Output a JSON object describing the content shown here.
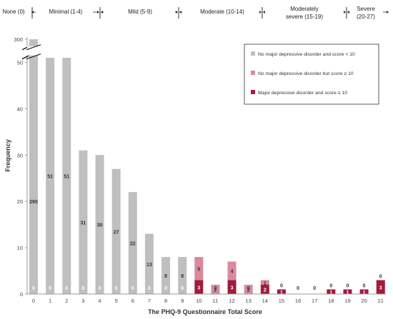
{
  "chart_data": {
    "type": "bar",
    "stacked": true,
    "xlabel": "The PHQ-9 Questionnaire Total Score",
    "ylabel": "Frequency",
    "ylim": [
      0,
      55
    ],
    "y_break": {
      "below": 50,
      "above": 300
    },
    "yticks": [
      "0",
      "10",
      "20",
      "30",
      "40",
      "50",
      "300"
    ],
    "categories": [
      "0",
      "1",
      "2",
      "3",
      "4",
      "5",
      "6",
      "7",
      "8",
      "9",
      "10",
      "11",
      "12",
      "13",
      "14",
      "15",
      "16",
      "17",
      "18",
      "19",
      "20",
      "21"
    ],
    "series": [
      {
        "name": "No major depressive disorder and score < 10",
        "color": "#bfbfbf",
        "values": [
          295,
          51,
          51,
          31,
          30,
          27,
          22,
          13,
          8,
          8,
          0,
          0,
          0,
          0,
          0,
          0,
          0,
          0,
          0,
          0,
          0,
          0
        ]
      },
      {
        "name": "No major depressive disorder but score ≥ 10",
        "color": "#d98a9e",
        "values": [
          0,
          0,
          0,
          0,
          0,
          0,
          0,
          0,
          0,
          0,
          5,
          2,
          4,
          2,
          1,
          0,
          0,
          0,
          0,
          0,
          0,
          0
        ]
      },
      {
        "name": "Major depressive disorder and score ≥ 10",
        "color": "#a01c3c",
        "values": [
          0,
          0,
          0,
          0,
          0,
          0,
          0,
          0,
          0,
          0,
          3,
          0,
          3,
          0,
          2,
          1,
          0,
          0,
          1,
          1,
          1,
          3
        ]
      }
    ],
    "severity_bands": [
      {
        "label": "None (0)",
        "lines": [
          "None (0)"
        ]
      },
      {
        "label": "Minimal (1-4)",
        "lines": [
          "Minimal (1-4)"
        ]
      },
      {
        "label": "Mild (5-9)",
        "lines": [
          "Mild (5-9)"
        ]
      },
      {
        "label": "Moderate (10-14)",
        "lines": [
          "Moderate (10-14)"
        ]
      },
      {
        "label": "Moderately severe (15-19)",
        "lines": [
          "Moderately",
          "severe (15-19)"
        ]
      },
      {
        "label": "Severe (20-27)",
        "lines": [
          "Severe",
          "(20-27)"
        ]
      }
    ],
    "legend_position": "top-right",
    "grid": false
  }
}
